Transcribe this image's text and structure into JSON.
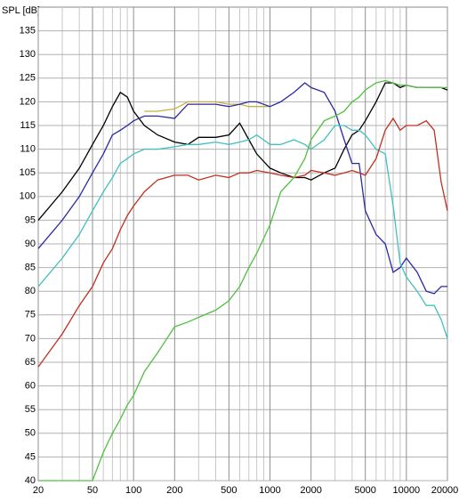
{
  "chart_data": {
    "type": "line",
    "y_label": "SPL [dB]",
    "log_x": true,
    "grid": true,
    "xlim": [
      20,
      20000
    ],
    "ylim": [
      40,
      140
    ],
    "xticks": [
      20,
      50,
      100,
      200,
      500,
      1000,
      2000,
      5000,
      10000,
      20000
    ],
    "xminorticks": [
      30,
      40,
      60,
      70,
      80,
      90,
      300,
      400,
      600,
      700,
      800,
      900,
      3000,
      4000,
      6000,
      7000,
      8000,
      9000
    ],
    "yticks": [
      40,
      45,
      50,
      55,
      60,
      65,
      70,
      75,
      80,
      85,
      90,
      95,
      100,
      105,
      110,
      115,
      120,
      125,
      130,
      135
    ],
    "x": [
      20,
      30,
      40,
      50,
      60,
      70,
      80,
      90,
      100,
      120,
      150,
      200,
      250,
      300,
      400,
      500,
      600,
      700,
      800,
      1000,
      1200,
      1500,
      1800,
      2000,
      2500,
      3000,
      3500,
      4000,
      4500,
      5000,
      6000,
      7000,
      8000,
      9000,
      10000,
      12000,
      14000,
      16000,
      18000,
      20000
    ],
    "series": [
      {
        "color": "#c8b040",
        "values": [
          null,
          null,
          null,
          null,
          null,
          null,
          null,
          null,
          null,
          118,
          118,
          118.5,
          120,
          120,
          120,
          119.5,
          119.5,
          119,
          119,
          119,
          null,
          null,
          null,
          null,
          null,
          null,
          null,
          null,
          null,
          null,
          null,
          null,
          null,
          null,
          null,
          null,
          null,
          null,
          null,
          null
        ]
      },
      {
        "color": "#000000",
        "values": [
          95,
          101,
          106,
          111,
          115,
          119,
          122,
          121,
          118,
          115,
          113,
          111.5,
          111,
          112.5,
          112.5,
          113,
          115.5,
          112,
          109,
          106,
          105,
          104,
          104,
          103.5,
          105,
          106,
          110,
          113,
          114,
          116,
          120,
          124,
          124,
          123,
          123.5,
          123,
          123,
          123,
          123,
          122.5
        ]
      },
      {
        "color": "#2a2aa0",
        "values": [
          89,
          95,
          100,
          105,
          109,
          113,
          114,
          115,
          116,
          117,
          117,
          116.5,
          119.5,
          119.5,
          119.5,
          119,
          119.5,
          120,
          120,
          119,
          120,
          122,
          124,
          123,
          122,
          118,
          112,
          107,
          107,
          97,
          92,
          90,
          84,
          85,
          87,
          84,
          80,
          79.5,
          81,
          81
        ]
      },
      {
        "color": "#40c0c0",
        "values": [
          81,
          87,
          92,
          97,
          101,
          104,
          107,
          108,
          109,
          110,
          110,
          110.5,
          111,
          111,
          111.5,
          111,
          111.5,
          112,
          113,
          111,
          111,
          112,
          111,
          110,
          112,
          115,
          115,
          114,
          114,
          113,
          110,
          109,
          98,
          86,
          83,
          80,
          77,
          77,
          74,
          70
        ]
      },
      {
        "color": "#c03020",
        "values": [
          64,
          71,
          77,
          81,
          86,
          89,
          93,
          96,
          98,
          101,
          103.5,
          104.5,
          104.5,
          103.5,
          104.5,
          104,
          105,
          105,
          105.5,
          105,
          104.5,
          104,
          104.5,
          105.5,
          105,
          104.5,
          105,
          105.5,
          105,
          104.5,
          108,
          114,
          116.5,
          114,
          115,
          115,
          116,
          114,
          103,
          97
        ]
      },
      {
        "color": "#50c040",
        "values": [
          40,
          40,
          40,
          40,
          46,
          50,
          53,
          56,
          58,
          63,
          67,
          72.5,
          73.5,
          74.5,
          76,
          78,
          81,
          85,
          88,
          94,
          101,
          104,
          108,
          112,
          116,
          117,
          118,
          120,
          121,
          122.5,
          124,
          124.5,
          124,
          123.5,
          123.5,
          123,
          123,
          123,
          123,
          123
        ]
      }
    ]
  }
}
